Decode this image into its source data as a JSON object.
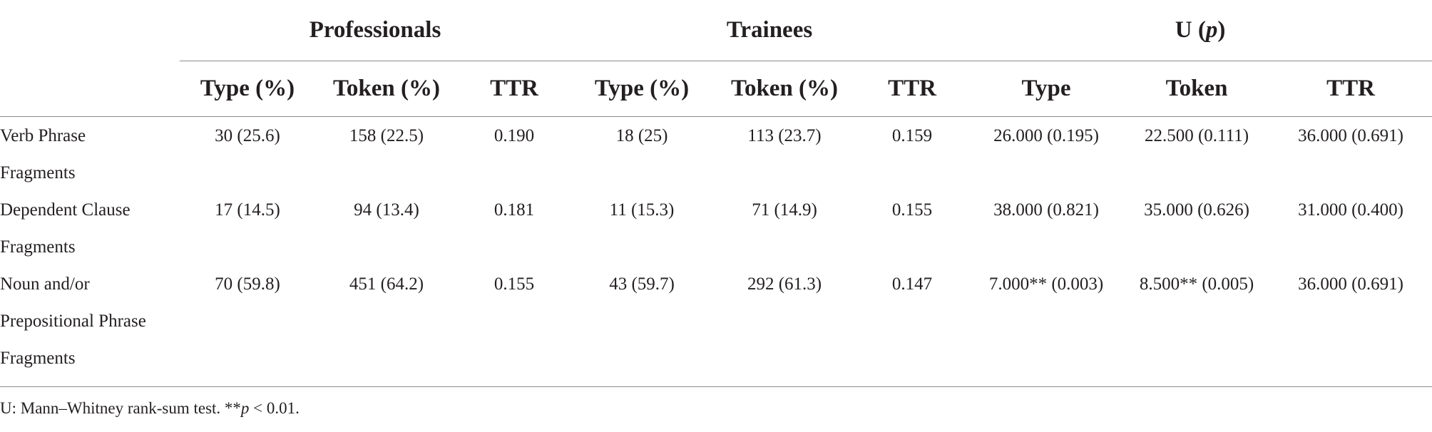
{
  "table": {
    "groups": {
      "professionals": "Professionals",
      "trainees": "Trainees",
      "u_prefix": "U (",
      "u_p": "p",
      "u_suffix": ")"
    },
    "subheaders": {
      "pro_type": "Type (%)",
      "pro_token": "Token (%)",
      "pro_ttr": "TTR",
      "tr_type": "Type (%)",
      "tr_token": "Token (%)",
      "tr_ttr": "TTR",
      "u_type": "Type",
      "u_token": "Token",
      "u_ttr": "TTR"
    },
    "rows": [
      {
        "label_lines": [
          "Verb Phrase",
          "Fragments"
        ],
        "cells": [
          "30 (25.6)",
          "158 (22.5)",
          "0.190",
          "18 (25)",
          "113 (23.7)",
          "0.159",
          "26.000 (0.195)",
          "22.500 (0.111)",
          "36.000 (0.691)"
        ]
      },
      {
        "label_lines": [
          "Dependent Clause",
          "Fragments"
        ],
        "cells": [
          "17 (14.5)",
          "94 (13.4)",
          "0.181",
          "11 (15.3)",
          "71 (14.9)",
          "0.155",
          "38.000 (0.821)",
          "35.000 (0.626)",
          "31.000 (0.400)"
        ]
      },
      {
        "label_lines": [
          "Noun and/or",
          "Prepositional Phrase",
          "Fragments"
        ],
        "cells": [
          "70 (59.8)",
          "451 (64.2)",
          "0.155",
          "43 (59.7)",
          "292 (61.3)",
          "0.147",
          "7.000** (0.003)",
          "8.500** (0.005)",
          "36.000 (0.691)"
        ]
      }
    ]
  },
  "footnote": {
    "prefix": "U: Mann–Whitney rank-sum test. **",
    "p": "p",
    "suffix": " < 0.01."
  }
}
